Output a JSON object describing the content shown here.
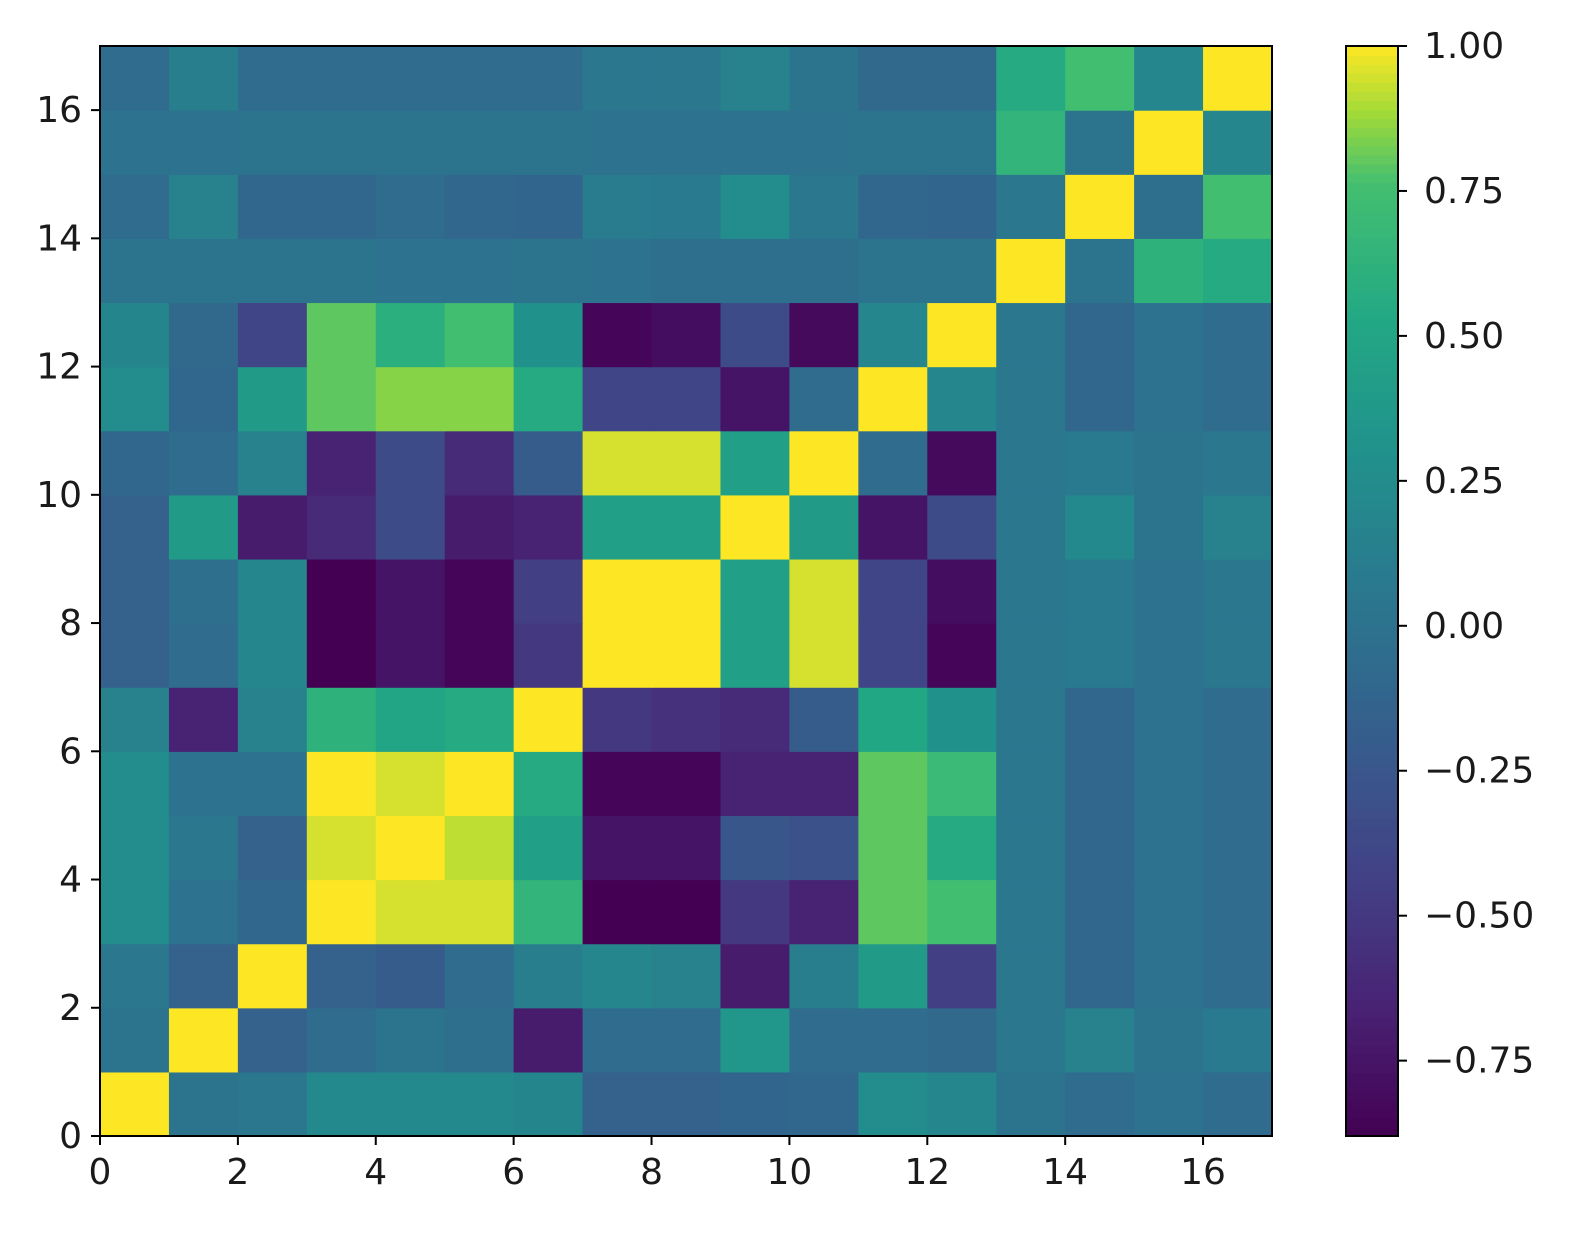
{
  "chart_data": {
    "type": "heatmap",
    "title": "",
    "xlabel": "",
    "ylabel": "",
    "xlim": [
      0,
      17
    ],
    "ylim": [
      0,
      17
    ],
    "grid": false,
    "colormap": "viridis",
    "x_ticks": [
      0,
      2,
      4,
      6,
      8,
      10,
      12,
      14,
      16
    ],
    "x_tick_labels": [
      "0",
      "2",
      "4",
      "6",
      "8",
      "10",
      "12",
      "14",
      "16"
    ],
    "y_ticks": [
      0,
      2,
      4,
      6,
      8,
      10,
      12,
      14,
      16
    ],
    "y_tick_labels": [
      "0",
      "2",
      "4",
      "6",
      "8",
      "10",
      "12",
      "14",
      "16"
    ],
    "colorbar": {
      "range": [
        -0.88,
        1.0
      ],
      "ticks": [
        1.0,
        0.75,
        0.5,
        0.25,
        0.0,
        -0.25,
        -0.5,
        -0.75
      ],
      "tick_labels": [
        "1.00",
        "0.75",
        "0.50",
        "0.25",
        "0.00",
        "−0.25",
        "−0.50",
        "−0.75"
      ]
    },
    "rows_note_y_from": 0,
    "values": [
      [
        1.0,
        0.02,
        0.05,
        0.22,
        0.22,
        0.22,
        0.18,
        -0.15,
        -0.15,
        -0.12,
        -0.1,
        0.25,
        0.2,
        0.02,
        -0.05,
        0.0,
        -0.05
      ],
      [
        0.02,
        1.0,
        -0.15,
        -0.05,
        0.02,
        -0.02,
        -0.7,
        -0.05,
        -0.05,
        0.35,
        -0.05,
        -0.05,
        -0.08,
        0.05,
        0.15,
        0.02,
        0.08
      ],
      [
        0.05,
        -0.15,
        1.0,
        -0.15,
        -0.2,
        -0.05,
        0.12,
        0.2,
        0.15,
        -0.7,
        0.12,
        0.4,
        -0.45,
        0.05,
        -0.1,
        0.0,
        -0.05
      ],
      [
        0.25,
        0.0,
        -0.1,
        1.0,
        0.95,
        0.95,
        0.65,
        -0.88,
        -0.88,
        -0.5,
        -0.65,
        0.8,
        0.75,
        0.05,
        -0.1,
        0.0,
        -0.05
      ],
      [
        0.25,
        0.05,
        -0.15,
        0.95,
        1.0,
        0.92,
        0.45,
        -0.75,
        -0.75,
        -0.25,
        -0.3,
        0.8,
        0.55,
        0.05,
        -0.1,
        0.0,
        -0.05
      ],
      [
        0.25,
        0.0,
        0.0,
        1.0,
        0.95,
        1.0,
        0.55,
        -0.85,
        -0.85,
        -0.65,
        -0.65,
        0.8,
        0.7,
        0.05,
        -0.1,
        0.0,
        -0.05
      ],
      [
        0.15,
        -0.65,
        0.15,
        0.62,
        0.5,
        0.55,
        1.0,
        -0.5,
        -0.55,
        -0.6,
        -0.2,
        0.52,
        0.3,
        0.05,
        -0.1,
        0.0,
        -0.05
      ],
      [
        -0.15,
        -0.05,
        0.2,
        -0.88,
        -0.75,
        -0.85,
        -0.5,
        1.0,
        1.0,
        0.45,
        0.95,
        -0.4,
        -0.85,
        0.05,
        0.08,
        0.0,
        0.05
      ],
      [
        -0.15,
        -0.02,
        0.2,
        -0.88,
        -0.75,
        -0.85,
        -0.45,
        1.0,
        1.0,
        0.45,
        0.95,
        -0.4,
        -0.8,
        0.05,
        0.08,
        0.0,
        0.05
      ],
      [
        -0.15,
        0.4,
        -0.7,
        -0.6,
        -0.35,
        -0.7,
        -0.65,
        0.45,
        0.45,
        1.0,
        0.4,
        -0.75,
        -0.35,
        0.05,
        0.22,
        0.02,
        0.15
      ],
      [
        -0.1,
        -0.05,
        0.15,
        -0.65,
        -0.35,
        -0.6,
        -0.2,
        0.95,
        0.95,
        0.45,
        1.0,
        -0.05,
        -0.82,
        0.05,
        0.08,
        0.02,
        0.05
      ],
      [
        0.25,
        -0.1,
        0.4,
        0.8,
        0.85,
        0.85,
        0.55,
        -0.4,
        -0.4,
        -0.75,
        -0.05,
        1.0,
        0.2,
        0.05,
        -0.1,
        0.0,
        -0.05
      ],
      [
        0.18,
        -0.08,
        -0.4,
        0.8,
        0.6,
        0.75,
        0.3,
        -0.85,
        -0.8,
        -0.35,
        -0.82,
        0.2,
        1.0,
        0.05,
        -0.1,
        0.0,
        -0.05
      ],
      [
        0.02,
        0.02,
        0.02,
        0.02,
        0.0,
        0.0,
        0.02,
        0.0,
        -0.02,
        -0.02,
        -0.02,
        0.02,
        0.02,
        1.0,
        0.02,
        0.62,
        0.55
      ],
      [
        -0.05,
        0.15,
        -0.1,
        -0.1,
        -0.05,
        -0.1,
        -0.12,
        0.1,
        0.08,
        0.25,
        0.05,
        -0.1,
        -0.12,
        0.05,
        1.0,
        -0.02,
        0.75
      ],
      [
        0.0,
        0.0,
        0.02,
        0.02,
        0.02,
        0.02,
        0.02,
        0.0,
        0.0,
        0.0,
        0.0,
        0.02,
        0.02,
        0.65,
        0.02,
        1.0,
        0.2
      ],
      [
        -0.05,
        0.12,
        -0.05,
        -0.05,
        -0.05,
        -0.05,
        -0.05,
        0.05,
        0.05,
        0.15,
        0.02,
        -0.08,
        -0.08,
        0.55,
        0.75,
        0.2,
        1.0
      ]
    ]
  }
}
